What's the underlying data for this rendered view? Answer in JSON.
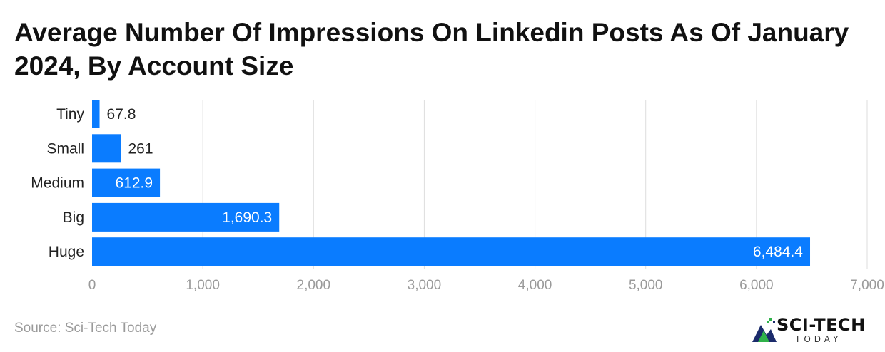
{
  "chart_data": {
    "type": "bar",
    "orientation": "horizontal",
    "title": "Average Number Of Impressions On Linkedin Posts As Of January 2024, By Account Size",
    "categories": [
      "Tiny",
      "Small",
      "Medium",
      "Big",
      "Huge"
    ],
    "values": [
      67.8,
      261,
      612.9,
      1690.3,
      6484.4
    ],
    "value_labels": [
      "67.8",
      "261",
      "612.9",
      "1,690.3",
      "6,484.4"
    ],
    "xlim": [
      0,
      7000
    ],
    "xticks": [
      0,
      1000,
      2000,
      3000,
      4000,
      5000,
      6000,
      7000
    ],
    "xtick_labels": [
      "0",
      "1,000",
      "2,000",
      "3,000",
      "4,000",
      "5,000",
      "6,000",
      "7,000"
    ],
    "grid": true,
    "bar_color": "#0a7cff"
  },
  "footer": {
    "source": "Source: Sci-Tech Today"
  },
  "logo": {
    "main": "SCI-TECH",
    "sub": "TODAY",
    "icon": "mountain-chart-icon"
  }
}
